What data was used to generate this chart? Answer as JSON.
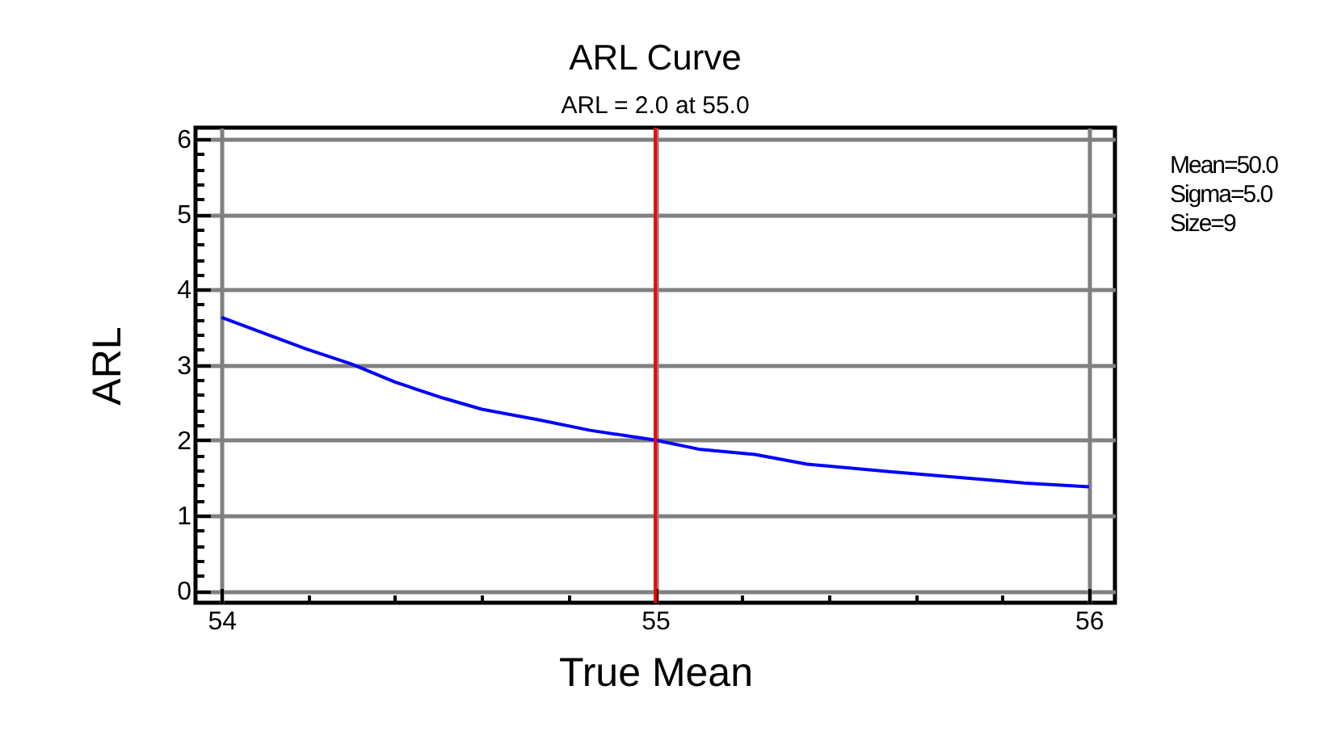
{
  "chart_data": {
    "type": "line",
    "title": "ARL Curve",
    "subtitle": "ARL = 2.0 at 55.0",
    "xlabel": "True Mean",
    "ylabel": "ARL",
    "annotations": [
      "Mean=50.0",
      "Sigma=5.0",
      "Size=9"
    ],
    "x": [
      54,
      54.195,
      54.3,
      54.4,
      54.51,
      54.6,
      54.73,
      54.85,
      55,
      55.1,
      55.23,
      55.35,
      55.54,
      55.73,
      55.85,
      56
    ],
    "series": [
      {
        "color": "#0000ff",
        "values": [
          3.63,
          3.21,
          3.01,
          2.77,
          2.56,
          2.41,
          2.27,
          2.13,
          2.0,
          1.88,
          1.81,
          1.68,
          1.58,
          1.49,
          1.43,
          1.38
        ]
      }
    ],
    "xlim": [
      53.94,
      56.06
    ],
    "ylim": [
      -0.16,
      6.15
    ],
    "xticks": [
      54,
      {
        "value": 54.2,
        "label": null
      },
      {
        "value": 54.4,
        "label": null
      },
      {
        "value": 54.6,
        "label": null
      },
      {
        "value": 54.8,
        "label": null
      },
      55,
      {
        "value": 55.2,
        "label": null
      },
      {
        "value": 55.4,
        "label": null
      },
      {
        "value": 55.6,
        "label": null
      },
      {
        "value": 55.8,
        "label": null
      },
      56
    ],
    "yticks": [
      0,
      {
        "value": 0.2,
        "label": null
      },
      {
        "value": 0.4,
        "label": null
      },
      {
        "value": 0.6,
        "label": null
      },
      {
        "value": 0.8,
        "label": null
      },
      1,
      {
        "value": 1.2,
        "label": null
      },
      {
        "value": 1.4,
        "label": null
      },
      {
        "value": 1.6,
        "label": null
      },
      {
        "value": 1.8,
        "label": null
      },
      2,
      {
        "value": 2.2,
        "label": null
      },
      {
        "value": 2.4,
        "label": null
      },
      {
        "value": 2.6,
        "label": null
      },
      {
        "value": 2.8,
        "label": null
      },
      3,
      {
        "value": 3.2,
        "label": null
      },
      {
        "value": 3.4,
        "label": null
      },
      {
        "value": 3.6,
        "label": null
      },
      {
        "value": 3.8,
        "label": null
      },
      4,
      {
        "value": 4.2,
        "label": null
      },
      {
        "value": 4.4,
        "label": null
      },
      {
        "value": 4.6,
        "label": null
      },
      {
        "value": 4.8,
        "label": null
      },
      5,
      {
        "value": 5.2,
        "label": null
      },
      {
        "value": 5.4,
        "label": null
      },
      {
        "value": 5.6,
        "label": null
      },
      {
        "value": 5.8,
        "label": null
      },
      6
    ],
    "grid": true,
    "ref_lines": [
      {
        "axis": "x",
        "value": 55,
        "color": "#ff0000"
      }
    ]
  }
}
